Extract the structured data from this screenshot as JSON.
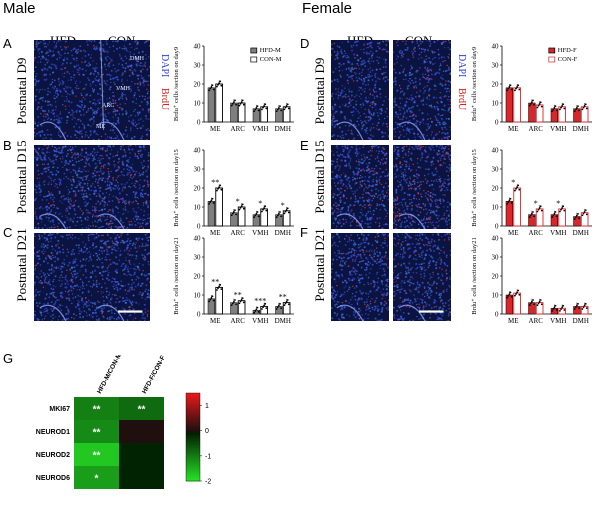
{
  "sections": {
    "male_title": "Male",
    "female_title": "Female"
  },
  "panels": {
    "A": "A",
    "B": "B",
    "C": "C",
    "D": "D",
    "E": "E",
    "F": "F",
    "G": "G"
  },
  "columns": {
    "hfd": "HFD",
    "con": "CON"
  },
  "rows": {
    "d9": "Postnatal D9",
    "d15": "Postnatal D15",
    "d21": "Postnatal D21"
  },
  "stain": {
    "dapi": "DAPI",
    "brdu": "BrdU"
  },
  "regions": {
    "dmh": "DMH",
    "vmh": "VMH",
    "arc": "ARC",
    "me": "ME"
  },
  "colors": {
    "dapi": "#2b3ad6",
    "brdu": "#d22222",
    "male_hfd": "#7f7f7f",
    "female_hfd": "#d9262b",
    "tissue_bg": "#0b1440"
  },
  "chart_data": [
    {
      "id": "male-d9",
      "type": "bar",
      "categories": [
        "ME",
        "ARC",
        "VMH",
        "DMH"
      ],
      "ylabel": "Brdu⁺ cells /section on day9",
      "ylim": [
        0,
        40
      ],
      "yticks": [
        0,
        10,
        20,
        30,
        40
      ],
      "series": [
        {
          "name": "HFD-M",
          "values": [
            18,
            10,
            7,
            7
          ]
        },
        {
          "name": "CON-M",
          "values": [
            20,
            10,
            8,
            8
          ]
        }
      ],
      "significance": [
        "",
        "",
        "",
        ""
      ],
      "legend": "top-right"
    },
    {
      "id": "male-d15",
      "type": "bar",
      "categories": [
        "ME",
        "ARC",
        "VMH",
        "DMH"
      ],
      "ylabel": "Brdu⁺ cells /section on day15",
      "ylim": [
        0,
        40
      ],
      "yticks": [
        0,
        10,
        20,
        30,
        40
      ],
      "series": [
        {
          "name": "HFD-M",
          "values": [
            13,
            7,
            6,
            6
          ]
        },
        {
          "name": "CON-M",
          "values": [
            20,
            10,
            9,
            8
          ]
        }
      ],
      "significance": [
        "**",
        "*",
        "*",
        "*"
      ]
    },
    {
      "id": "male-d21",
      "type": "bar",
      "categories": [
        "ME",
        "ARC",
        "VMH",
        "DMH"
      ],
      "ylabel": "Brdu⁺ cells /section on day21",
      "ylim": [
        0,
        40
      ],
      "yticks": [
        0,
        10,
        20,
        30,
        40
      ],
      "series": [
        {
          "name": "HFD-M",
          "values": [
            8,
            6,
            2,
            4
          ]
        },
        {
          "name": "CON-M",
          "values": [
            14,
            7,
            4,
            6
          ]
        }
      ],
      "significance": [
        "**",
        "**",
        "***",
        "**"
      ]
    },
    {
      "id": "female-d9",
      "type": "bar",
      "categories": [
        "ME",
        "ARC",
        "VMH",
        "DMH"
      ],
      "ylabel": "Brdu⁺ cells /section on day9",
      "ylim": [
        0,
        40
      ],
      "yticks": [
        0,
        10,
        20,
        30,
        40
      ],
      "series": [
        {
          "name": "HFD-F",
          "values": [
            18,
            10,
            7,
            7
          ]
        },
        {
          "name": "CON-F",
          "values": [
            18,
            9,
            8,
            8
          ]
        }
      ],
      "significance": [
        "",
        "",
        "",
        ""
      ],
      "legend": "top-right"
    },
    {
      "id": "female-d15",
      "type": "bar",
      "categories": [
        "ME",
        "ARC",
        "VMH",
        "DMH"
      ],
      "ylabel": "Brdu⁺ cells /section on day15",
      "ylim": [
        0,
        40
      ],
      "yticks": [
        0,
        10,
        20,
        30,
        40
      ],
      "series": [
        {
          "name": "HFD-F",
          "values": [
            13,
            6,
            6,
            5
          ]
        },
        {
          "name": "CON-F",
          "values": [
            20,
            9,
            9,
            7
          ]
        }
      ],
      "significance": [
        "*",
        "*",
        "*",
        ""
      ]
    },
    {
      "id": "female-d21",
      "type": "bar",
      "categories": [
        "ME",
        "ARC",
        "VMH",
        "DMH"
      ],
      "ylabel": "Brdu⁺ cells /section on day21",
      "ylim": [
        0,
        40
      ],
      "yticks": [
        0,
        10,
        20,
        30,
        40
      ],
      "series": [
        {
          "name": "HFD-F",
          "values": [
            10,
            6,
            3,
            4
          ]
        },
        {
          "name": "CON-F",
          "values": [
            11,
            6,
            3,
            4
          ]
        }
      ],
      "significance": [
        "",
        "",
        "",
        ""
      ]
    },
    {
      "id": "heatmap",
      "type": "heatmap",
      "columns": [
        "HFD-M/CON-M",
        "HFD-F/CON-F"
      ],
      "rows": [
        "MKI67",
        "NEUROD1",
        "NEUROD2",
        "NEUROD6"
      ],
      "values": [
        [
          -1.0,
          -0.8
        ],
        [
          -1.1,
          0.05
        ],
        [
          -1.7,
          -0.1
        ],
        [
          -1.3,
          -0.1
        ]
      ],
      "significance": [
        [
          "**",
          "**"
        ],
        [
          "**",
          ""
        ],
        [
          "**",
          ""
        ],
        [
          "*",
          ""
        ]
      ],
      "colorbar_ticks": [
        1,
        0,
        -1,
        -2
      ],
      "colorbar_range": [
        -2,
        1.5
      ]
    }
  ]
}
